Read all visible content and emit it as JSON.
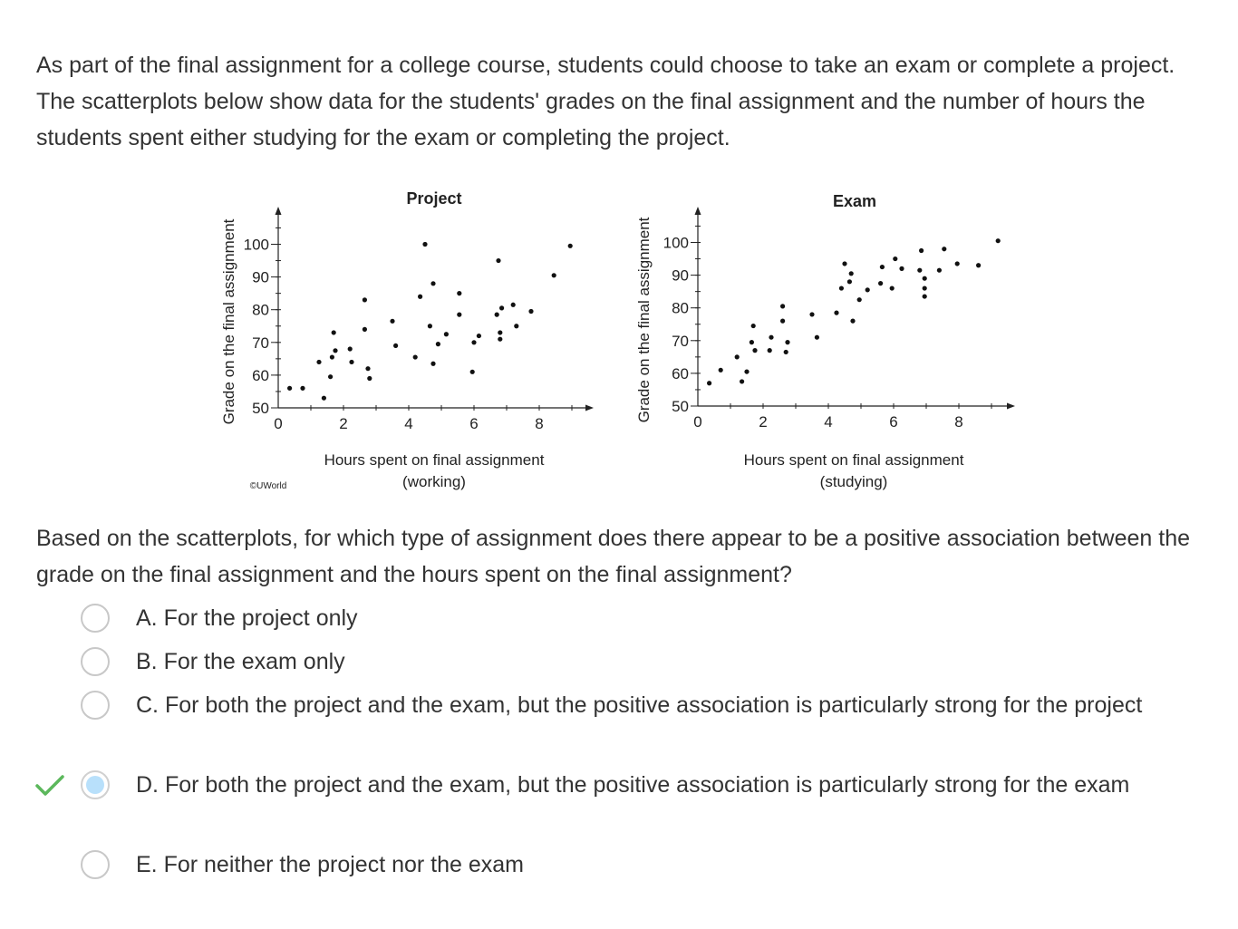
{
  "intro": "As part of the final assignment for a college course, students could choose to take an exam or complete a project.  The scatterplots below show data for the students' grades on the final assignment and the number of hours the students spent either studying for the exam or completing the project.",
  "copyright": "©UWorld",
  "chart_data": [
    {
      "type": "scatter",
      "title": "Project",
      "xlabel": [
        "Hours spent on final assignment",
        "(working)"
      ],
      "ylabel": "Grade on the final assignment",
      "xlim": [
        0,
        9.3
      ],
      "ylim": [
        50,
        110
      ],
      "xticks": [
        0,
        2,
        4,
        6,
        8
      ],
      "yticks": [
        50,
        60,
        70,
        80,
        90,
        100
      ],
      "grid": false,
      "points": [
        {
          "x": 0.35,
          "y": 56
        },
        {
          "x": 0.75,
          "y": 56
        },
        {
          "x": 1.25,
          "y": 64
        },
        {
          "x": 1.4,
          "y": 53
        },
        {
          "x": 1.6,
          "y": 59.5
        },
        {
          "x": 1.65,
          "y": 65.5
        },
        {
          "x": 1.7,
          "y": 73
        },
        {
          "x": 1.75,
          "y": 67.5
        },
        {
          "x": 2.2,
          "y": 68
        },
        {
          "x": 2.25,
          "y": 64
        },
        {
          "x": 2.65,
          "y": 83
        },
        {
          "x": 2.65,
          "y": 74
        },
        {
          "x": 2.75,
          "y": 62
        },
        {
          "x": 2.8,
          "y": 59
        },
        {
          "x": 3.5,
          "y": 76.5
        },
        {
          "x": 3.6,
          "y": 69
        },
        {
          "x": 4.2,
          "y": 65.5
        },
        {
          "x": 4.35,
          "y": 84
        },
        {
          "x": 4.5,
          "y": 100
        },
        {
          "x": 4.65,
          "y": 75
        },
        {
          "x": 4.75,
          "y": 88
        },
        {
          "x": 4.75,
          "y": 63.5
        },
        {
          "x": 4.9,
          "y": 69.5
        },
        {
          "x": 5.15,
          "y": 72.5
        },
        {
          "x": 5.55,
          "y": 85
        },
        {
          "x": 5.55,
          "y": 78.5
        },
        {
          "x": 5.95,
          "y": 61
        },
        {
          "x": 6.0,
          "y": 70
        },
        {
          "x": 6.15,
          "y": 72
        },
        {
          "x": 6.7,
          "y": 78.5
        },
        {
          "x": 6.75,
          "y": 95
        },
        {
          "x": 6.8,
          "y": 73
        },
        {
          "x": 6.8,
          "y": 71
        },
        {
          "x": 6.85,
          "y": 80.5
        },
        {
          "x": 7.2,
          "y": 81.5
        },
        {
          "x": 7.3,
          "y": 75
        },
        {
          "x": 7.75,
          "y": 79.5
        },
        {
          "x": 8.45,
          "y": 90.5
        },
        {
          "x": 8.95,
          "y": 99.5
        }
      ]
    },
    {
      "type": "scatter",
      "title": "Exam",
      "xlabel": [
        "Hours spent on final assignment",
        "(studying)"
      ],
      "ylabel": "Grade on the final assignment",
      "xlim": [
        0,
        9.3
      ],
      "ylim": [
        50,
        110
      ],
      "xticks": [
        0,
        2,
        4,
        6,
        8
      ],
      "yticks": [
        50,
        60,
        70,
        80,
        90,
        100
      ],
      "grid": false,
      "points": [
        {
          "x": 0.35,
          "y": 57
        },
        {
          "x": 0.7,
          "y": 61
        },
        {
          "x": 1.2,
          "y": 65
        },
        {
          "x": 1.35,
          "y": 57.5
        },
        {
          "x": 1.5,
          "y": 60.5
        },
        {
          "x": 1.7,
          "y": 74.5
        },
        {
          "x": 1.65,
          "y": 69.5
        },
        {
          "x": 1.75,
          "y": 67
        },
        {
          "x": 2.2,
          "y": 67
        },
        {
          "x": 2.25,
          "y": 71
        },
        {
          "x": 2.6,
          "y": 80.5
        },
        {
          "x": 2.6,
          "y": 76
        },
        {
          "x": 2.7,
          "y": 66.5
        },
        {
          "x": 2.75,
          "y": 69.5
        },
        {
          "x": 3.5,
          "y": 78
        },
        {
          "x": 3.65,
          "y": 71
        },
        {
          "x": 4.25,
          "y": 78.5
        },
        {
          "x": 4.4,
          "y": 86
        },
        {
          "x": 4.5,
          "y": 93.5
        },
        {
          "x": 4.65,
          "y": 88
        },
        {
          "x": 4.7,
          "y": 90.5
        },
        {
          "x": 4.75,
          "y": 76
        },
        {
          "x": 4.95,
          "y": 82.5
        },
        {
          "x": 5.2,
          "y": 85.5
        },
        {
          "x": 5.6,
          "y": 87.5
        },
        {
          "x": 5.65,
          "y": 92.5
        },
        {
          "x": 5.95,
          "y": 86
        },
        {
          "x": 6.05,
          "y": 95
        },
        {
          "x": 6.25,
          "y": 92
        },
        {
          "x": 6.85,
          "y": 97.5
        },
        {
          "x": 6.8,
          "y": 91.5
        },
        {
          "x": 6.95,
          "y": 89
        },
        {
          "x": 6.95,
          "y": 86
        },
        {
          "x": 6.95,
          "y": 83.5
        },
        {
          "x": 7.4,
          "y": 91.5
        },
        {
          "x": 7.55,
          "y": 98
        },
        {
          "x": 7.95,
          "y": 93.5
        },
        {
          "x": 8.6,
          "y": 93
        },
        {
          "x": 9.2,
          "y": 100.5
        }
      ]
    }
  ],
  "question": "Based on the scatterplots, for which type of assignment does there appear to be a positive association between the grade on the final assignment and the hours spent on the final assignment?",
  "choices": [
    {
      "label": "A. For the project only",
      "selected": false,
      "correct": false
    },
    {
      "label": "B. For the exam only",
      "selected": false,
      "correct": false
    },
    {
      "label": "C. For both the project and the exam, but the positive association is particularly strong for the project",
      "selected": false,
      "correct": false
    },
    {
      "label": "D. For both the project and the exam, but the positive association is particularly strong for the exam",
      "selected": true,
      "correct": true
    },
    {
      "label": "E. For neither the project nor the exam",
      "selected": false,
      "correct": false
    }
  ],
  "colors": {
    "text": "#333333",
    "check": "#5cb85c",
    "radio_selected_fill": "#b8e0fb",
    "radio_border": "#c8c8c8"
  },
  "icons": {
    "correct": "checkmark-icon"
  }
}
